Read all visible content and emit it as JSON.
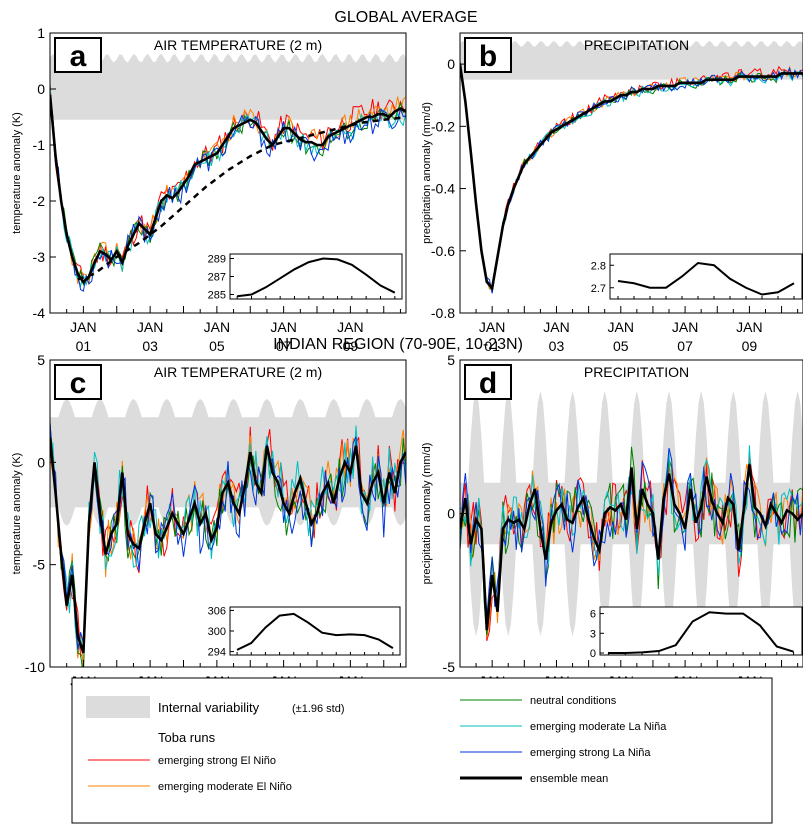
{
  "figure": {
    "section_titles": [
      "GLOBAL AVERAGE",
      "INDIAN REGION (70-90E, 10-23N)"
    ],
    "x_ticks": [
      {
        "top": "JAN",
        "bottom": "01",
        "month": 12
      },
      {
        "top": "JAN",
        "bottom": "03",
        "month": 36
      },
      {
        "top": "JAN",
        "bottom": "05",
        "month": 60
      },
      {
        "top": "JAN",
        "bottom": "07",
        "month": 84
      },
      {
        "top": "JAN",
        "bottom": "09",
        "month": 108
      }
    ],
    "colors": {
      "strong_el_nino": "#ff0000",
      "moderate_el_nino": "#ff8000",
      "neutral": "#008000",
      "moderate_la_nina": "#00c0c0",
      "strong_la_nina": "#0033dd",
      "ensemble_mean": "#000000",
      "variability_band": "#dcdcdc"
    }
  },
  "legend": {
    "variability_label": "Internal variability",
    "variability_note": "(±1.96 std)",
    "toba_header": "Toba runs",
    "entries": [
      {
        "key": "strong_el_nino",
        "label": "emerging strong El Niño"
      },
      {
        "key": "moderate_el_nino",
        "label": "emerging moderate El Niño"
      },
      {
        "key": "neutral",
        "label": "neutral conditions"
      },
      {
        "key": "moderate_la_nina",
        "label": "emerging moderate La Niña"
      },
      {
        "key": "strong_la_nina",
        "label": "emerging strong La Niña"
      },
      {
        "key": "ensemble_mean",
        "label": "ensemble mean"
      }
    ]
  },
  "chart_data": [
    {
      "type": "line",
      "panel": "a",
      "title": "AIR TEMPERATURE (2 m)",
      "ylabel": "temperature anomaly (K)",
      "xlim": [
        0,
        128
      ],
      "ylim": [
        -4,
        1
      ],
      "yticks": [
        1,
        0,
        -1,
        -2,
        -3,
        -4
      ],
      "band": {
        "lower": -0.55,
        "upper": 0.55,
        "upper_wobble": 0.08
      },
      "ensemble_mean": {
        "x": [
          0,
          2,
          4,
          6,
          8,
          10,
          12,
          14,
          16,
          18,
          20,
          22,
          24,
          26,
          28,
          30,
          32,
          34,
          36,
          38,
          40,
          42,
          44,
          46,
          48,
          50,
          52,
          54,
          56,
          58,
          60,
          62,
          64,
          66,
          68,
          70,
          72,
          74,
          76,
          78,
          80,
          82,
          84,
          86,
          88,
          90,
          92,
          94,
          96,
          98,
          100,
          102,
          104,
          106,
          108,
          110,
          112,
          114,
          116,
          118,
          120,
          122,
          124,
          126,
          128
        ],
        "y": [
          -0.1,
          -1.2,
          -2.0,
          -2.6,
          -3.0,
          -3.3,
          -3.45,
          -3.35,
          -3.1,
          -2.9,
          -2.95,
          -3.05,
          -2.9,
          -3.1,
          -2.8,
          -2.6,
          -2.4,
          -2.5,
          -2.6,
          -2.3,
          -2.0,
          -1.9,
          -1.95,
          -1.85,
          -1.7,
          -1.55,
          -1.35,
          -1.3,
          -1.25,
          -1.2,
          -1.15,
          -1.0,
          -0.85,
          -0.7,
          -0.65,
          -0.6,
          -0.55,
          -0.6,
          -0.75,
          -0.9,
          -1.0,
          -0.85,
          -0.7,
          -0.7,
          -0.8,
          -0.9,
          -0.95,
          -0.95,
          -1.0,
          -1.0,
          -0.85,
          -0.8,
          -0.75,
          -0.7,
          -0.65,
          -0.6,
          -0.55,
          -0.5,
          -0.5,
          -0.45,
          -0.45,
          -0.5,
          -0.4,
          -0.35,
          -0.4
        ]
      },
      "trend": {
        "x": [
          10,
          16,
          24,
          32,
          40,
          48,
          56,
          64,
          72,
          80,
          88,
          96,
          104,
          112,
          120,
          128
        ],
        "y": [
          -3.4,
          -3.3,
          -3.0,
          -2.75,
          -2.45,
          -2.1,
          -1.75,
          -1.45,
          -1.2,
          -1.0,
          -0.9,
          -0.8,
          -0.7,
          -0.6,
          -0.55,
          -0.5
        ]
      },
      "members": [
        {
          "key": "strong_el_nino",
          "amp": 0.22,
          "seed": 11,
          "bias": 0.12
        },
        {
          "key": "moderate_el_nino",
          "amp": 0.2,
          "seed": 23,
          "bias": 0.08
        },
        {
          "key": "neutral",
          "amp": 0.18,
          "seed": 37,
          "bias": -0.05
        },
        {
          "key": "moderate_la_nina",
          "amp": 0.2,
          "seed": 41,
          "bias": -0.08
        },
        {
          "key": "strong_la_nina",
          "amp": 0.22,
          "seed": 53,
          "bias": -0.12
        }
      ],
      "inset": {
        "yticks": [
          289,
          287,
          285
        ],
        "ylim": [
          284.5,
          289.5
        ],
        "x": [
          0,
          1,
          2,
          3,
          4,
          5,
          6,
          7,
          8,
          9,
          10,
          11
        ],
        "y": [
          284.8,
          285.0,
          285.8,
          286.8,
          287.8,
          288.6,
          289.0,
          288.9,
          288.3,
          287.2,
          286.0,
          285.2
        ]
      }
    },
    {
      "type": "line",
      "panel": "b",
      "title": "PRECIPITATION",
      "ylabel": "precipitation anomaly (mm/d)",
      "xlim": [
        0,
        128
      ],
      "ylim": [
        -0.8,
        0.1
      ],
      "yticks": [
        0,
        -0.2,
        -0.4,
        -0.6,
        -0.8
      ],
      "ytick_labels": [
        "0",
        "-0.2",
        "-0.4",
        "-0.6",
        "-0.8"
      ],
      "band": {
        "lower": -0.05,
        "upper": 0.065,
        "upper_wobble": 0.01
      },
      "ensemble_mean": {
        "x": [
          0,
          2,
          4,
          6,
          8,
          10,
          12,
          14,
          16,
          18,
          20,
          22,
          24,
          26,
          28,
          30,
          32,
          34,
          36,
          38,
          40,
          42,
          44,
          46,
          48,
          50,
          52,
          54,
          56,
          58,
          60,
          62,
          64,
          66,
          68,
          70,
          72,
          74,
          76,
          78,
          80,
          82,
          84,
          86,
          88,
          90,
          92,
          94,
          96,
          98,
          100,
          102,
          104,
          106,
          108,
          110,
          112,
          114,
          116,
          118,
          120,
          122,
          124,
          126,
          128
        ],
        "y": [
          0.0,
          -0.12,
          -0.28,
          -0.45,
          -0.6,
          -0.7,
          -0.72,
          -0.62,
          -0.52,
          -0.45,
          -0.4,
          -0.36,
          -0.32,
          -0.3,
          -0.28,
          -0.26,
          -0.24,
          -0.22,
          -0.21,
          -0.2,
          -0.19,
          -0.18,
          -0.17,
          -0.16,
          -0.15,
          -0.14,
          -0.13,
          -0.12,
          -0.12,
          -0.11,
          -0.1,
          -0.1,
          -0.09,
          -0.09,
          -0.08,
          -0.08,
          -0.08,
          -0.07,
          -0.07,
          -0.07,
          -0.07,
          -0.06,
          -0.06,
          -0.06,
          -0.06,
          -0.06,
          -0.05,
          -0.05,
          -0.05,
          -0.05,
          -0.05,
          -0.05,
          -0.04,
          -0.04,
          -0.04,
          -0.04,
          -0.04,
          -0.04,
          -0.04,
          -0.04,
          -0.03,
          -0.03,
          -0.03,
          -0.03,
          -0.03
        ]
      },
      "members": [
        {
          "key": "strong_el_nino",
          "amp": 0.018,
          "seed": 61,
          "bias": 0.01
        },
        {
          "key": "moderate_el_nino",
          "amp": 0.016,
          "seed": 67,
          "bias": 0.005
        },
        {
          "key": "neutral",
          "amp": 0.015,
          "seed": 71,
          "bias": -0.005
        },
        {
          "key": "moderate_la_nina",
          "amp": 0.016,
          "seed": 73,
          "bias": -0.008
        },
        {
          "key": "strong_la_nina",
          "amp": 0.018,
          "seed": 79,
          "bias": 0.0
        }
      ],
      "inset": {
        "yticks": [
          2.8,
          2.7
        ],
        "ylim": [
          2.65,
          2.85
        ],
        "x": [
          0,
          1,
          2,
          3,
          4,
          5,
          6,
          7,
          8,
          9,
          10,
          11
        ],
        "y": [
          2.73,
          2.72,
          2.7,
          2.7,
          2.75,
          2.81,
          2.8,
          2.74,
          2.7,
          2.67,
          2.68,
          2.72
        ]
      }
    },
    {
      "type": "line",
      "panel": "c",
      "title": "AIR TEMPERATURE (2 m)",
      "ylabel": "temperature anomaly (K)",
      "xlim": [
        0,
        128
      ],
      "ylim": [
        -10,
        5
      ],
      "yticks": [
        5,
        0,
        -5,
        -10
      ],
      "band": {
        "lower": -2.2,
        "upper": 2.2,
        "seasonal_amp": 0.9
      },
      "ensemble_mean": {
        "x": [
          0,
          2,
          4,
          6,
          8,
          10,
          12,
          14,
          16,
          18,
          20,
          22,
          24,
          26,
          28,
          30,
          32,
          34,
          36,
          38,
          40,
          42,
          44,
          46,
          48,
          50,
          52,
          54,
          56,
          58,
          60,
          62,
          64,
          66,
          68,
          70,
          72,
          74,
          76,
          78,
          80,
          82,
          84,
          86,
          88,
          90,
          92,
          94,
          96,
          98,
          100,
          102,
          104,
          106,
          108,
          110,
          112,
          114,
          116,
          118,
          120,
          122,
          124,
          126,
          128
        ],
        "y": [
          1.2,
          -1.5,
          -4.5,
          -7.0,
          -5.5,
          -8.5,
          -9.3,
          -3.0,
          0.0,
          -2.5,
          -4.5,
          -3.5,
          -3.0,
          -0.5,
          -3.5,
          -4.0,
          -4.2,
          -3.0,
          -2.0,
          -3.5,
          -3.8,
          -3.2,
          -2.5,
          -3.0,
          -3.5,
          -2.8,
          -2.0,
          -3.0,
          -2.5,
          -3.8,
          -3.2,
          -1.5,
          -1.0,
          -2.0,
          -2.5,
          -1.2,
          0.5,
          -1.0,
          -1.5,
          0.8,
          -0.5,
          -1.0,
          -2.0,
          -2.5,
          -1.5,
          -0.8,
          -2.0,
          -3.0,
          -2.5,
          -1.5,
          -1.0,
          -2.0,
          -0.8,
          0.0,
          -0.5,
          0.8,
          -1.5,
          -2.0,
          -1.0,
          -0.5,
          -2.0,
          -0.5,
          -1.5,
          0.0,
          0.5
        ]
      },
      "members": [
        {
          "key": "strong_el_nino",
          "amp": 1.3,
          "seed": 83,
          "bias": 0.4
        },
        {
          "key": "moderate_el_nino",
          "amp": 1.2,
          "seed": 89,
          "bias": 0.2
        },
        {
          "key": "neutral",
          "amp": 1.2,
          "seed": 97,
          "bias": -0.2
        },
        {
          "key": "moderate_la_nina",
          "amp": 1.4,
          "seed": 101,
          "bias": 0.3
        },
        {
          "key": "strong_la_nina",
          "amp": 1.3,
          "seed": 103,
          "bias": -0.4
        }
      ],
      "inset": {
        "yticks": [
          306,
          300,
          294
        ],
        "ylim": [
          293,
          307
        ],
        "x": [
          0,
          1,
          2,
          3,
          4,
          5,
          6,
          7,
          8,
          9,
          10,
          11
        ],
        "y": [
          294.5,
          296.5,
          301.0,
          304.5,
          305.0,
          302.5,
          299.5,
          298.8,
          299.0,
          298.8,
          297.5,
          295.0
        ]
      }
    },
    {
      "type": "line",
      "panel": "d",
      "title": "PRECIPITATION",
      "ylabel": "precipitation anomaly (mm/d)",
      "xlim": [
        0,
        128
      ],
      "ylim": [
        -5,
        5
      ],
      "yticks": [
        5,
        0,
        -5
      ],
      "band": {
        "lower": -1.0,
        "upper": 1.0,
        "seasonal_amp": 3.0
      },
      "ensemble_mean": {
        "x": [
          0,
          2,
          4,
          6,
          8,
          10,
          12,
          14,
          16,
          18,
          20,
          22,
          24,
          26,
          28,
          30,
          32,
          34,
          36,
          38,
          40,
          42,
          44,
          46,
          48,
          50,
          52,
          54,
          56,
          58,
          60,
          62,
          64,
          66,
          68,
          70,
          72,
          74,
          76,
          78,
          80,
          82,
          84,
          86,
          88,
          90,
          92,
          94,
          96,
          98,
          100,
          102,
          104,
          106,
          108,
          110,
          112,
          114,
          116,
          118,
          120,
          122,
          124,
          126,
          128
        ],
        "y": [
          -0.5,
          0.5,
          -1.0,
          -0.2,
          -0.5,
          -3.8,
          -2.0,
          -3.2,
          -0.5,
          -0.2,
          -0.3,
          -0.2,
          -0.5,
          0.3,
          0.8,
          -0.5,
          -1.5,
          -0.3,
          0.1,
          0.3,
          -0.2,
          -0.3,
          0.2,
          0.5,
          -0.2,
          -0.8,
          -1.2,
          0.0,
          0.2,
          0.1,
          0.3,
          -0.2,
          1.5,
          -0.5,
          0.8,
          0.3,
          0.0,
          -1.5,
          0.5,
          1.3,
          0.3,
          0.0,
          -0.5,
          0.8,
          -0.3,
          0.2,
          1.2,
          0.4,
          0.0,
          -0.3,
          0.5,
          0.3,
          -1.2,
          0.2,
          1.6,
          0.2,
          0.0,
          -0.4,
          0.3,
          0.0,
          -0.3,
          0.1,
          0.0,
          -0.2,
          0.0
        ]
      },
      "members": [
        {
          "key": "strong_el_nino",
          "amp": 1.0,
          "seed": 107,
          "bias": 0.0
        },
        {
          "key": "moderate_el_nino",
          "amp": 0.9,
          "seed": 109,
          "bias": 0.0
        },
        {
          "key": "neutral",
          "amp": 1.0,
          "seed": 113,
          "bias": 0.0
        },
        {
          "key": "moderate_la_nina",
          "amp": 0.9,
          "seed": 127,
          "bias": 0.0
        },
        {
          "key": "strong_la_nina",
          "amp": 1.0,
          "seed": 131,
          "bias": 0.0
        }
      ],
      "inset": {
        "yticks": [
          6,
          3,
          0
        ],
        "ylim": [
          -0.3,
          7
        ],
        "x": [
          0,
          1,
          2,
          3,
          4,
          5,
          6,
          7,
          8,
          9,
          10,
          11
        ],
        "y": [
          0.0,
          0.0,
          0.1,
          0.3,
          1.2,
          4.8,
          6.2,
          6.0,
          6.0,
          4.2,
          1.0,
          0.2
        ]
      }
    }
  ]
}
